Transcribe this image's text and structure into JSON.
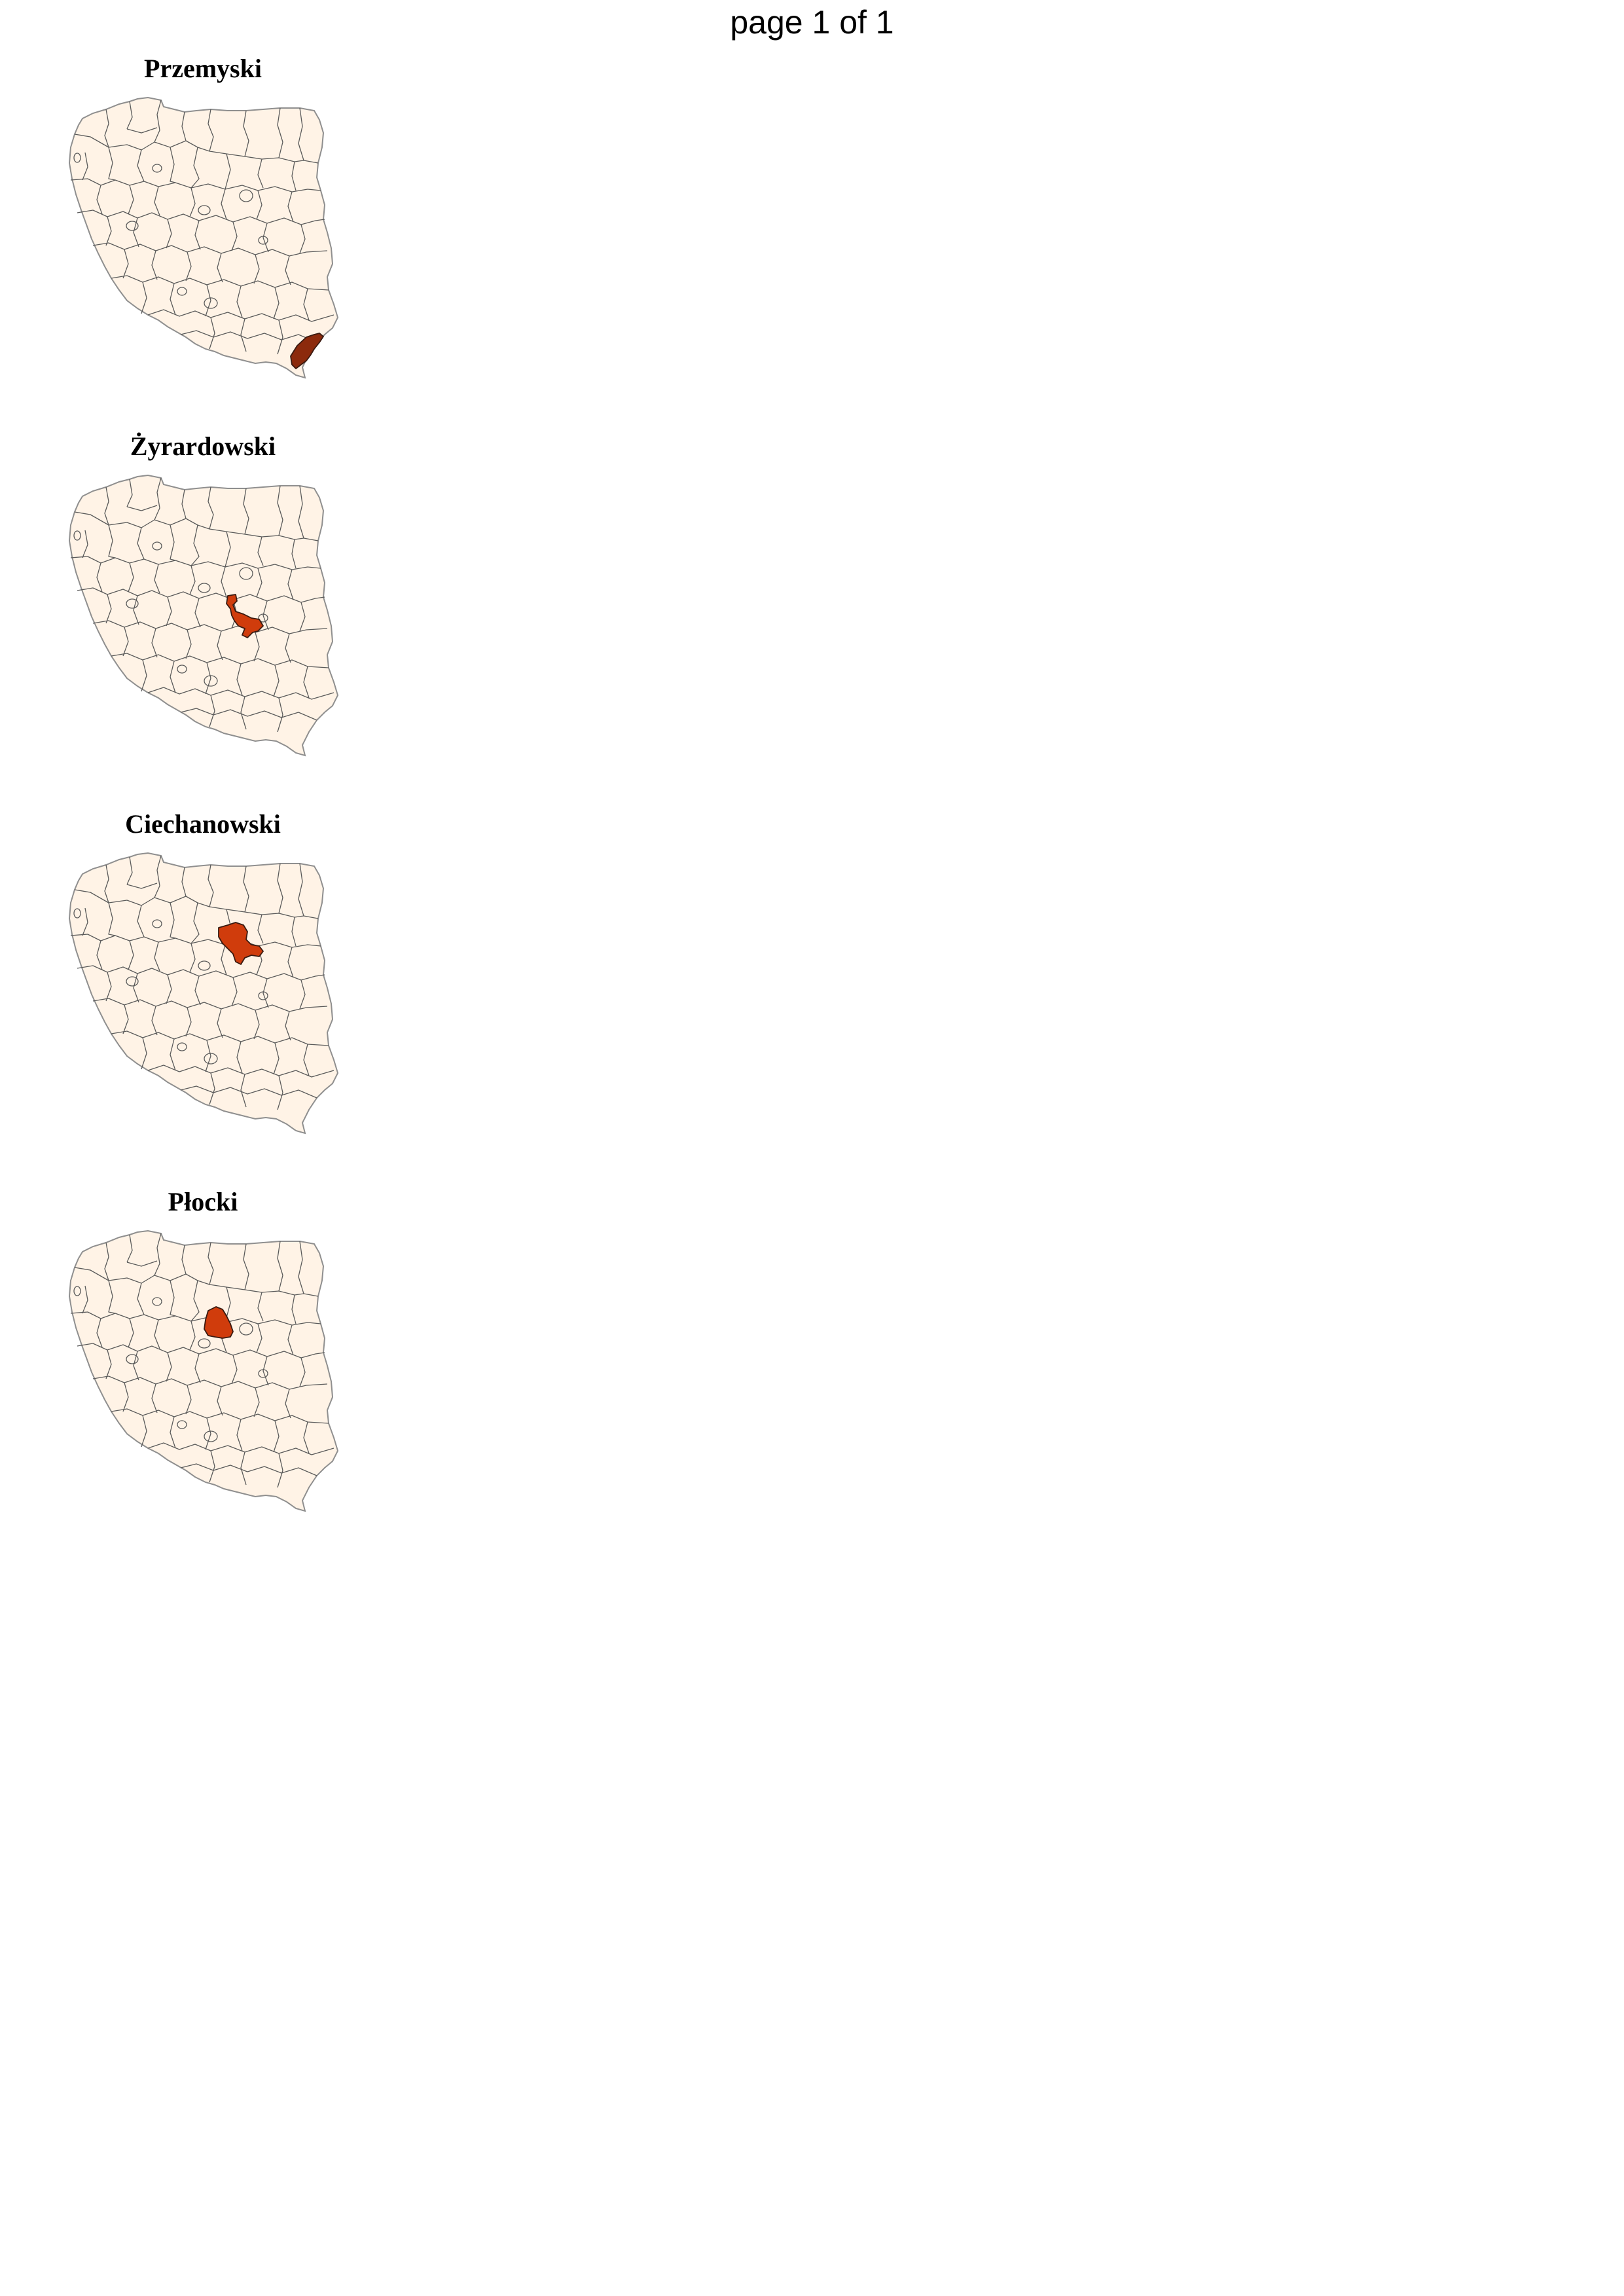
{
  "page_label": "page 1 of 1",
  "colors": {
    "background": "#ffffff",
    "region_fill": "#fff3e6",
    "region_border": "#5a5a5a",
    "country_outline": "#8f8f8f"
  },
  "panels": [
    {
      "title": "Przemyski",
      "region": "przemyski",
      "highlight_color": "#8c2a0c"
    },
    {
      "title": "Żyrardowski",
      "region": "zyrardowski",
      "highlight_color": "#d03c0c"
    },
    {
      "title": "Ciechanowski",
      "region": "ciechanowski",
      "highlight_color": "#d03c0c"
    },
    {
      "title": "Płocki",
      "region": "plocki",
      "highlight_color": "#d03c0c"
    }
  ]
}
